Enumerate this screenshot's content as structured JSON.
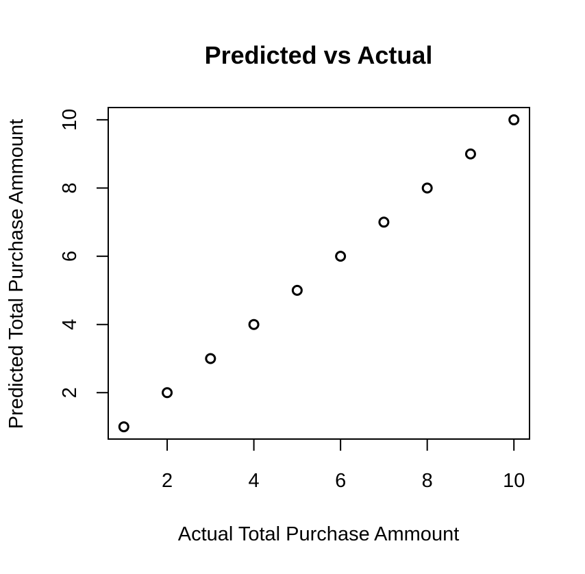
{
  "chart_data": {
    "type": "scatter",
    "title": "Predicted vs Actual",
    "xlabel": "Actual Total Purchase Ammount",
    "ylabel": "Predicted Total Purchase Ammount",
    "xlim": [
      0.64,
      10.36
    ],
    "ylim": [
      0.64,
      10.36
    ],
    "x_ticks": [
      2,
      4,
      6,
      8,
      10
    ],
    "y_ticks": [
      2,
      4,
      6,
      8,
      10
    ],
    "grid": false,
    "marker": "open-circle",
    "colors": {
      "points": "#000000",
      "frame": "#000000",
      "background": "#ffffff"
    },
    "series": [
      {
        "x": [
          1,
          2,
          3,
          4,
          5,
          6,
          7,
          8,
          9,
          10
        ],
        "y": [
          1,
          2,
          3,
          4,
          5,
          6,
          7,
          8,
          9,
          10
        ]
      }
    ]
  }
}
